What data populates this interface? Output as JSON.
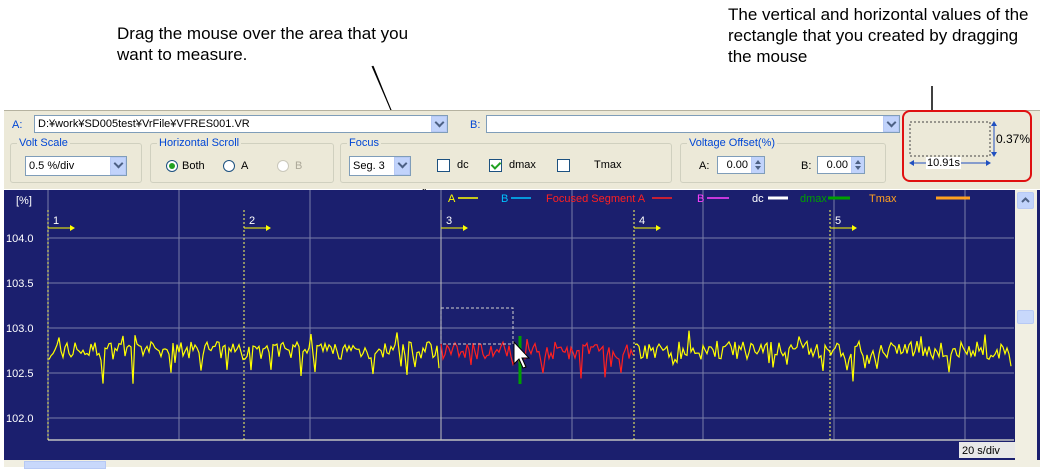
{
  "callouts": {
    "drag": "Drag the mouse over the area that you want to measure.",
    "values": "The vertical and horizontal values of the rectangle that you created by dragging the mouse"
  },
  "toolbar": {
    "a_label": "A:",
    "a_path": "D:¥work¥SD005test¥VrFile¥VFRES001.VR",
    "b_label": "B:",
    "b_path": ""
  },
  "volt_scale": {
    "title": "Volt Scale",
    "value": "0.5 %/div"
  },
  "horizontal_scroll": {
    "title": "Horizontal Scroll",
    "options": [
      "Both",
      "A",
      "B"
    ],
    "selected": "Both",
    "disabled": [
      "B"
    ]
  },
  "focus": {
    "title": "Focus",
    "segment": "Seg. 3",
    "dc_label": "dc",
    "dc_checked": false,
    "dmax_label": "dmax",
    "dmax_checked": true,
    "tmax_label": "Tmax",
    "tmax_checked": false
  },
  "voltage_offset": {
    "title": "Voltage Offset(%)",
    "a_label": "A:",
    "a_value": "0.00",
    "b_label": "B:",
    "b_value": "0.00"
  },
  "measure": {
    "vertical": "0.37%",
    "horizontal": "10.91s"
  },
  "plot": {
    "y_unit": "[%]",
    "y_ticks": [
      "104.0",
      "103.5",
      "103.0",
      "102.5",
      "102.0"
    ],
    "time_scale": "20 s/div",
    "segments": [
      "1",
      "2",
      "3",
      "4",
      "5"
    ],
    "legend": [
      {
        "label": "A",
        "color": "#ffff00"
      },
      {
        "label": "B",
        "color": "#00c0ff"
      },
      {
        "label": "Focused Segment A",
        "color": "#ff2020"
      },
      {
        "label": "B",
        "color": "#ff40ff"
      },
      {
        "label": "dc",
        "color": "#ffffff"
      },
      {
        "label": "dmax",
        "color": "#00a000"
      },
      {
        "label": "Tmax",
        "color": "#ffa020"
      }
    ],
    "colors": {
      "background": "#1b1f6e",
      "signal_a": "#ffff00",
      "focused": "#ff2020",
      "dmax": "#00a000",
      "grid": "#7a7da8"
    }
  }
}
